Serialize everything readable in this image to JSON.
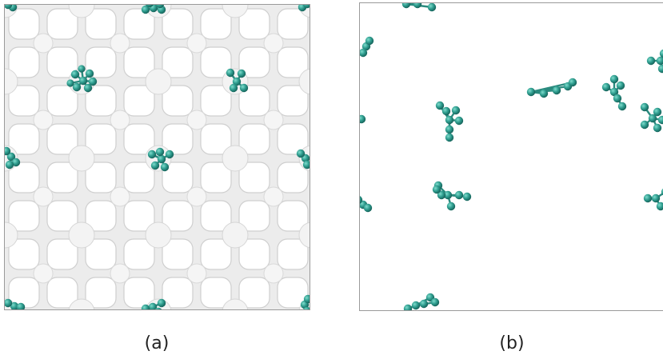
{
  "captions": {
    "a": "(a)",
    "b": "(b)"
  },
  "colors": {
    "molecule": "#2e9c8e",
    "molecule_highlight": "#6fd1c2",
    "molecule_shadow": "#1b6a61",
    "framework": "#e6e6e6",
    "framework_edge": "#c9c9c9",
    "pore": "#ffffff",
    "border": "#9a9a9a"
  },
  "panels": [
    {
      "id": "a",
      "content": "porous-framework-with-molecule-clusters"
    },
    {
      "id": "b",
      "content": "molecule-clusters-only"
    }
  ]
}
